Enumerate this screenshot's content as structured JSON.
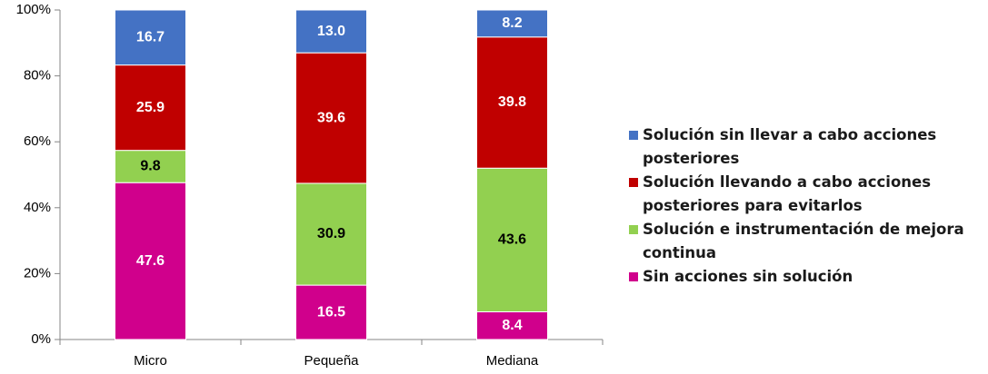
{
  "chart_data": {
    "type": "stacked_bar",
    "categories": [
      "Micro",
      "Pequeña",
      "Mediana"
    ],
    "series": [
      {
        "name": "Sin acciones sin solución",
        "color": "#d0008c",
        "label_color": "#ffffff",
        "values": [
          47.6,
          16.5,
          8.4
        ],
        "value_labels": [
          "47.6",
          "16.5",
          "8.4"
        ]
      },
      {
        "name": "Solución e instrumentación de mejora continua",
        "color": "#92d050",
        "label_color": "#000000",
        "values": [
          9.8,
          30.9,
          43.6
        ],
        "value_labels": [
          "9.8",
          "30.9",
          "43.6"
        ]
      },
      {
        "name": "Solución llevando a cabo acciones posteriores para evitarlos",
        "color": "#c00000",
        "label_color": "#ffffff",
        "values": [
          25.9,
          39.6,
          39.8
        ],
        "value_labels": [
          "25.9",
          "39.6",
          "39.8"
        ]
      },
      {
        "name": "Solución sin llevar a cabo acciones posteriores",
        "color": "#4472c4",
        "label_color": "#ffffff",
        "values": [
          16.7,
          13.0,
          8.2
        ],
        "value_labels": [
          "16.7",
          "13.0",
          "8.2"
        ]
      }
    ],
    "ylim": [
      0,
      100
    ],
    "yticks": [
      {
        "value": 0,
        "label": "0%"
      },
      {
        "value": 20,
        "label": "20%"
      },
      {
        "value": 40,
        "label": "40%"
      },
      {
        "value": 60,
        "label": "60%"
      },
      {
        "value": 80,
        "label": "80%"
      },
      {
        "value": 100,
        "label": "100%"
      }
    ],
    "legend": "right"
  }
}
